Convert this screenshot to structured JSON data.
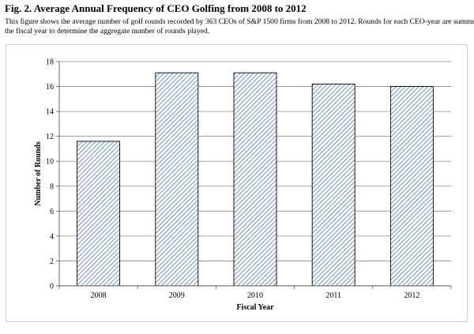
{
  "figure": {
    "title": "Fig. 2. Average Annual Frequency of CEO Golfing from 2008 to 2012",
    "caption_line1": "This figure shows the average number of golf rounds recorded by 363 CEOs of S&P 1500 firms from 2008 to 2012. Rounds for each CEO-year are summed ov",
    "caption_line2": "the fiscal year to determine the aggregate number of rounds played."
  },
  "chart_data": {
    "type": "bar",
    "categories": [
      "2008",
      "2009",
      "2010",
      "2011",
      "2012"
    ],
    "values": [
      11.6,
      17.1,
      17.1,
      16.2,
      16.0
    ],
    "xlabel": "Fiscal Year",
    "ylabel": "Number of Rounds",
    "ylim": [
      0,
      18
    ],
    "yticks": [
      0,
      2,
      4,
      6,
      8,
      10,
      12,
      14,
      16,
      18
    ],
    "grid": true,
    "bar_fill": "diagonal hatch",
    "colors": {
      "hatch": "#4a7ab0",
      "bar_edge": "#000000",
      "grid": "#8c8c8c"
    }
  }
}
